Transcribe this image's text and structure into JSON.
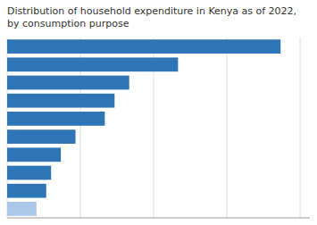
{
  "chart_data": {
    "type": "bar",
    "orientation": "horizontal",
    "title": "Distribution of household expenditure in Kenya as of 2022, by consumption purpose",
    "values": [
      56,
      35,
      25,
      22,
      20,
      14,
      11,
      9,
      8,
      6
    ],
    "colors": [
      "#2e75b6",
      "#2e75b6",
      "#2e75b6",
      "#2e75b6",
      "#2e75b6",
      "#2e75b6",
      "#2e75b6",
      "#2e75b6",
      "#2e75b6",
      "#aac8e8"
    ],
    "xlim": [
      0,
      62
    ],
    "xticks": [
      0,
      15,
      30,
      45,
      60
    ],
    "grid": true,
    "tick_labels": false
  }
}
